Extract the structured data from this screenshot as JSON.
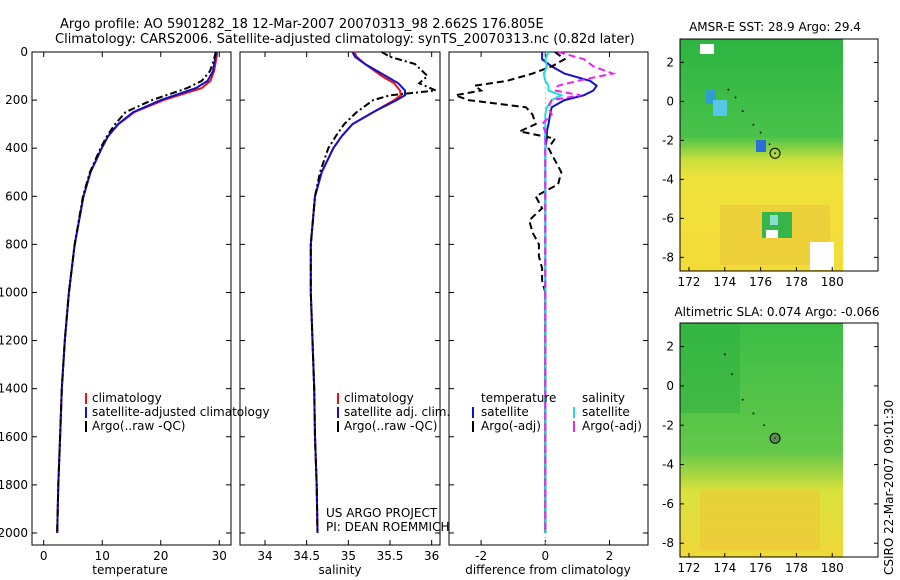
{
  "header": {
    "line1": "Argo profile: AO 5901282_18 12-Mar-2007 20070313_98 2.662S 176.805E",
    "line2": "Climatology: CARS2006. Satellite-adjusted climatology: synTS_20070313.nc (0.82d later)"
  },
  "side_label": "CSIRO 22-Mar-2007 09:01:30",
  "footer_note": [
    "US ARGO PROJECT",
    "PI: DEAN ROEMMICH"
  ],
  "colors": {
    "climatology": "#ee1111",
    "satellite": "#1111cc",
    "argo": "#000000",
    "sal_satellite": "#22dddd",
    "sal_argo": "#ee22ee",
    "map_green": "#33bb44",
    "map_yellow": "#e6e23a"
  },
  "chart_data": [
    {
      "id": "temperature",
      "type": "line",
      "xlabel": "temperature",
      "xlim": [
        -2,
        32
      ],
      "ylim": [
        2050,
        0
      ],
      "xticks": [
        0,
        10,
        20,
        30
      ],
      "yticks": [
        0,
        200,
        400,
        600,
        800,
        1000,
        1200,
        1400,
        1600,
        1800,
        2000
      ],
      "depth": [
        0,
        10,
        40,
        80,
        120,
        150,
        200,
        250,
        300,
        350,
        400,
        500,
        600,
        800,
        1000,
        1200,
        1400,
        1600,
        1800,
        2000
      ],
      "series": [
        {
          "name": "climatology",
          "style": "solid",
          "values": [
            29.6,
            29.6,
            29.4,
            29.1,
            28.5,
            27.0,
            20.5,
            15.5,
            12.8,
            11.0,
            9.9,
            8.0,
            6.8,
            5.3,
            4.3,
            3.6,
            3.1,
            2.8,
            2.5,
            2.3
          ]
        },
        {
          "name": "satellite-adjusted climatology",
          "style": "solid",
          "values": [
            29.4,
            29.4,
            29.2,
            28.9,
            28.0,
            26.0,
            20.0,
            15.3,
            12.7,
            11.0,
            9.9,
            8.0,
            6.8,
            5.3,
            4.3,
            3.6,
            3.1,
            2.8,
            2.5,
            2.3
          ]
        },
        {
          "name": "Argo(..raw -QC)",
          "style": "dashdot",
          "values": [
            29.4,
            29.3,
            29.0,
            28.4,
            27.0,
            24.5,
            18.5,
            14.0,
            12.2,
            10.8,
            9.7,
            7.9,
            6.7,
            5.3,
            4.3,
            3.6,
            3.1,
            2.8,
            2.5,
            2.3
          ]
        }
      ],
      "legend": [
        "climatology",
        "satellite-adjusted climatology",
        "Argo(..raw -QC)"
      ]
    },
    {
      "id": "salinity",
      "type": "line",
      "xlabel": "salinity",
      "xlim": [
        33.7,
        36.1
      ],
      "ylim": [
        2050,
        0
      ],
      "xticks": [
        34,
        34.5,
        35,
        35.5,
        36
      ],
      "depth": [
        0,
        20,
        50,
        100,
        130,
        160,
        180,
        200,
        250,
        300,
        350,
        400,
        500,
        600,
        800,
        1000,
        1200,
        1400,
        1600,
        1800,
        2000
      ],
      "series": [
        {
          "name": "climatology",
          "style": "solid",
          "values": [
            35.07,
            35.1,
            35.2,
            35.4,
            35.55,
            35.62,
            35.63,
            35.55,
            35.3,
            35.05,
            34.92,
            34.82,
            34.68,
            34.6,
            34.55,
            34.55,
            34.57,
            34.59,
            34.6,
            34.62,
            34.63
          ]
        },
        {
          "name": "satellite adj. clim.",
          "style": "solid",
          "values": [
            35.05,
            35.08,
            35.2,
            35.45,
            35.6,
            35.68,
            35.68,
            35.58,
            35.3,
            35.05,
            34.92,
            34.82,
            34.68,
            34.6,
            34.55,
            34.55,
            34.57,
            34.59,
            34.6,
            34.62,
            34.63
          ]
        },
        {
          "name": "Argo(..raw -QC)",
          "style": "dashdot",
          "values": [
            35.4,
            35.5,
            35.8,
            35.95,
            35.85,
            36.05,
            35.5,
            35.3,
            35.1,
            34.95,
            34.85,
            34.76,
            34.66,
            34.6,
            34.55,
            34.55,
            34.57,
            34.59,
            34.6,
            34.62,
            34.63
          ]
        }
      ],
      "legend": [
        "climatology",
        "satellite adj. clim.",
        "Argo(..raw -QC)"
      ]
    },
    {
      "id": "difference",
      "type": "line",
      "xlabel": "difference from climatology",
      "xlim": [
        -3,
        3.2
      ],
      "ylim": [
        2050,
        0
      ],
      "xticks": [
        -2,
        0,
        2
      ],
      "depth": [
        0,
        30,
        60,
        90,
        120,
        140,
        160,
        180,
        200,
        230,
        260,
        300,
        330,
        360,
        400,
        450,
        500,
        550,
        600,
        650,
        700,
        750,
        800,
        850,
        900,
        950,
        1000,
        1200,
        1500,
        2000
      ],
      "series": [
        {
          "name": "temperature satellite",
          "style": "solid",
          "values": [
            -0.1,
            -0.1,
            0.2,
            0.6,
            1.4,
            1.6,
            1.5,
            1.2,
            0.6,
            0.2,
            0.15,
            0.1,
            0.05,
            0.05,
            0.0,
            0.0,
            0.0,
            0.0,
            0.0,
            0.0,
            0.0,
            0.0,
            0.0,
            0.0,
            0.0,
            0.0,
            0.0,
            0.0,
            0.0,
            0.0
          ]
        },
        {
          "name": "temperature Argo(-adj)",
          "style": "dashed",
          "values": [
            0.3,
            0.6,
            0.2,
            -0.4,
            -1.2,
            -2.2,
            -2.0,
            -2.8,
            -2.4,
            -0.6,
            -0.4,
            -0.3,
            -0.8,
            0.3,
            0.1,
            0.3,
            0.5,
            0.4,
            -0.3,
            -0.1,
            -0.5,
            -0.4,
            -0.2,
            -0.2,
            -0.1,
            -0.1,
            0.0,
            0.0,
            0.0,
            0.0
          ]
        },
        {
          "name": "salinity satellite",
          "style": "solid",
          "values": [
            0.1,
            0.0,
            0.05,
            -0.05,
            0.0,
            0.1,
            0.1,
            0.5,
            0.2,
            0.05,
            0.0,
            0.0,
            0.0,
            0.0,
            0.0,
            0.0,
            0.0,
            0.0,
            0.0,
            0.0,
            0.0,
            0.0,
            0.0,
            0.0,
            0.0,
            0.0,
            0.0,
            0.0,
            0.0,
            0.0
          ]
        },
        {
          "name": "salinity Argo(-adj)",
          "style": "dashed",
          "values": [
            0.4,
            1.2,
            1.5,
            2.1,
            1.0,
            0.4,
            0.3,
            1.1,
            0.2,
            0.1,
            0.2,
            -0.1,
            0.0,
            0.0,
            0.0,
            0.0,
            0.0,
            0.0,
            0.0,
            0.0,
            0.0,
            0.0,
            0.0,
            0.0,
            0.0,
            0.0,
            0.0,
            0.0,
            0.0,
            0.0
          ]
        }
      ],
      "legend": {
        "left_title": "temperature",
        "right_title": "salinity",
        "left": [
          "satellite",
          "Argo(-adj)"
        ],
        "right": [
          "satellite",
          "Argo(-adj)"
        ]
      }
    }
  ],
  "maps": [
    {
      "id": "sst",
      "type": "heatmap",
      "title": "AMSR-E SST: 28.9 Argo: 29.4",
      "xlim": [
        171.5,
        181.5
      ],
      "ylim": [
        -8.7,
        3.2
      ],
      "xticks": [
        172,
        174,
        176,
        178,
        180
      ],
      "yticks": [
        -8,
        -6,
        -4,
        -2,
        0,
        2
      ],
      "float_position": {
        "lon": 176.805,
        "lat": -2.662
      },
      "track": [
        [
          174.2,
          0.6
        ],
        [
          174.6,
          0.2
        ],
        [
          175.0,
          -0.5
        ],
        [
          175.6,
          -1.2
        ],
        [
          176.0,
          -1.6
        ],
        [
          176.5,
          -2.2
        ],
        [
          176.805,
          -2.662
        ]
      ]
    },
    {
      "id": "sla",
      "type": "heatmap",
      "title": "Altimetric SLA: 0.074 Argo: -0.066",
      "xlim": [
        171.5,
        181.5
      ],
      "ylim": [
        -8.7,
        3.2
      ],
      "xticks": [
        172,
        174,
        176,
        178,
        180
      ],
      "yticks": [
        -8,
        -6,
        -4,
        -2,
        0,
        2
      ],
      "float_position": {
        "lon": 176.805,
        "lat": -2.662
      },
      "track": [
        [
          174.0,
          1.6
        ],
        [
          174.4,
          0.6
        ],
        [
          175.0,
          -0.7
        ],
        [
          175.6,
          -1.4
        ],
        [
          176.2,
          -2.0
        ],
        [
          176.805,
          -2.662
        ]
      ]
    }
  ]
}
